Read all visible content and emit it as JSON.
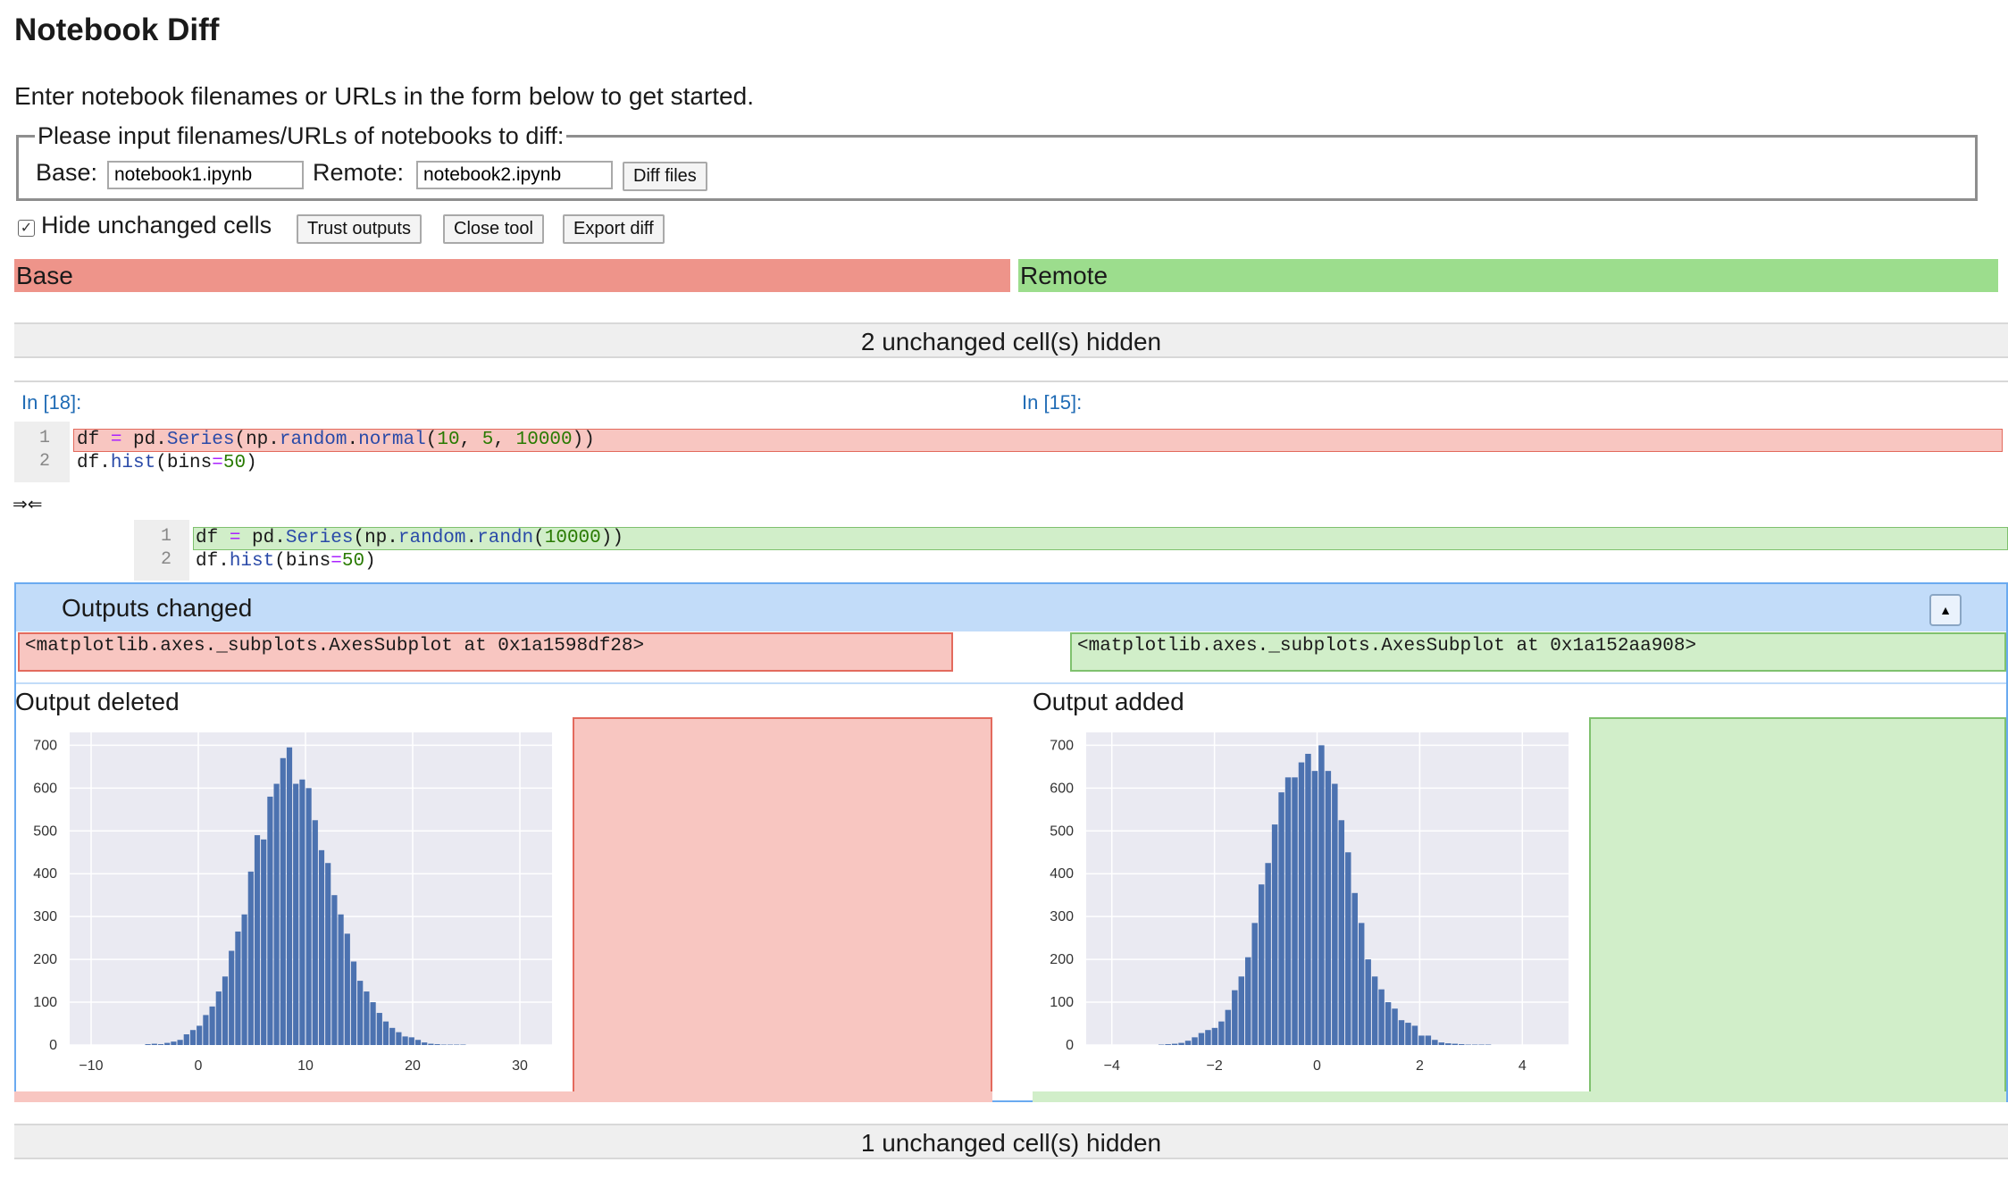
{
  "page": {
    "title": "Notebook Diff",
    "intro": "Enter notebook filenames or URLs in the form below to get started."
  },
  "form": {
    "legend": "Please input filenames/URLs of notebooks to diff:",
    "base_label": "Base:",
    "base_value": "notebook1.ipynb",
    "remote_label": "Remote:",
    "remote_value": "notebook2.ipynb",
    "diff_button": "Diff files"
  },
  "toolbar": {
    "hide_unchanged_label": "Hide unchanged cells",
    "hide_unchanged_checked": true,
    "trust_outputs": "Trust outputs",
    "close_tool": "Close tool",
    "export_diff": "Export diff"
  },
  "headers": {
    "base": "Base",
    "remote": "Remote"
  },
  "unchanged_top": "2 unchanged cell(s) hidden",
  "unchanged_bottom": "1 unchanged cell(s) hidden",
  "cell": {
    "base_prompt": "In [18]:",
    "remote_prompt": "In [15]:",
    "merge_marker": "⇒⇐",
    "base_lines": [
      "1",
      "2"
    ],
    "remote_lines": [
      "1",
      "2"
    ]
  },
  "outputs": {
    "title": "Outputs changed",
    "collapse_icon": "triangle-up-icon",
    "base_repr": "<matplotlib.axes._subplots.AxesSubplot at 0x1a1598df28>",
    "remote_repr": "<matplotlib.axes._subplots.AxesSubplot at 0x1a152aa908>",
    "deleted_label": "Output deleted",
    "added_label": "Output added"
  },
  "colors": {
    "deleted_bg": "#f8c6c1",
    "added_bg": "#d1eec9",
    "base_header": "#ee948a",
    "remote_header": "#9cdd8d",
    "outputs_header": "#c2dcf9",
    "bar": "#4c72b0"
  },
  "chart_data": [
    {
      "type": "bar",
      "name": "deleted-histogram",
      "x_start": -5,
      "bin_width": 0.6,
      "xlim": [
        -12,
        33
      ],
      "ylim": [
        0,
        730
      ],
      "xticks": [
        "−10",
        "0",
        "10",
        "20",
        "30"
      ],
      "xtick_values": [
        -10,
        0,
        10,
        20,
        30
      ],
      "yticks": [
        "0",
        "100",
        "200",
        "300",
        "400",
        "500",
        "600",
        "700"
      ],
      "ytick_values": [
        0,
        100,
        200,
        300,
        400,
        500,
        600,
        700
      ],
      "values": [
        2,
        3,
        2,
        5,
        8,
        12,
        25,
        35,
        45,
        70,
        90,
        125,
        160,
        220,
        265,
        305,
        405,
        490,
        480,
        580,
        610,
        670,
        695,
        610,
        620,
        600,
        525,
        455,
        425,
        350,
        305,
        260,
        195,
        150,
        125,
        100,
        75,
        55,
        40,
        30,
        20,
        18,
        12,
        6,
        3,
        2,
        1,
        1,
        1,
        1
      ]
    },
    {
      "type": "bar",
      "name": "added-histogram",
      "x_start": -3.1,
      "bin_width": 0.13,
      "xlim": [
        -4.5,
        4.9
      ],
      "ylim": [
        0,
        730
      ],
      "xticks": [
        "−4",
        "−2",
        "0",
        "2",
        "4"
      ],
      "xtick_values": [
        -4,
        -2,
        0,
        2,
        4
      ],
      "yticks": [
        "0",
        "100",
        "200",
        "300",
        "400",
        "500",
        "600",
        "700"
      ],
      "ytick_values": [
        0,
        100,
        200,
        300,
        400,
        500,
        600,
        700
      ],
      "values": [
        1,
        2,
        3,
        5,
        10,
        18,
        28,
        35,
        40,
        55,
        82,
        128,
        160,
        205,
        285,
        375,
        425,
        515,
        590,
        625,
        625,
        660,
        680,
        640,
        700,
        640,
        610,
        525,
        450,
        355,
        285,
        200,
        160,
        130,
        100,
        85,
        58,
        52,
        45,
        22,
        22,
        12,
        6,
        4,
        3,
        2,
        1,
        1,
        1,
        1
      ]
    }
  ]
}
